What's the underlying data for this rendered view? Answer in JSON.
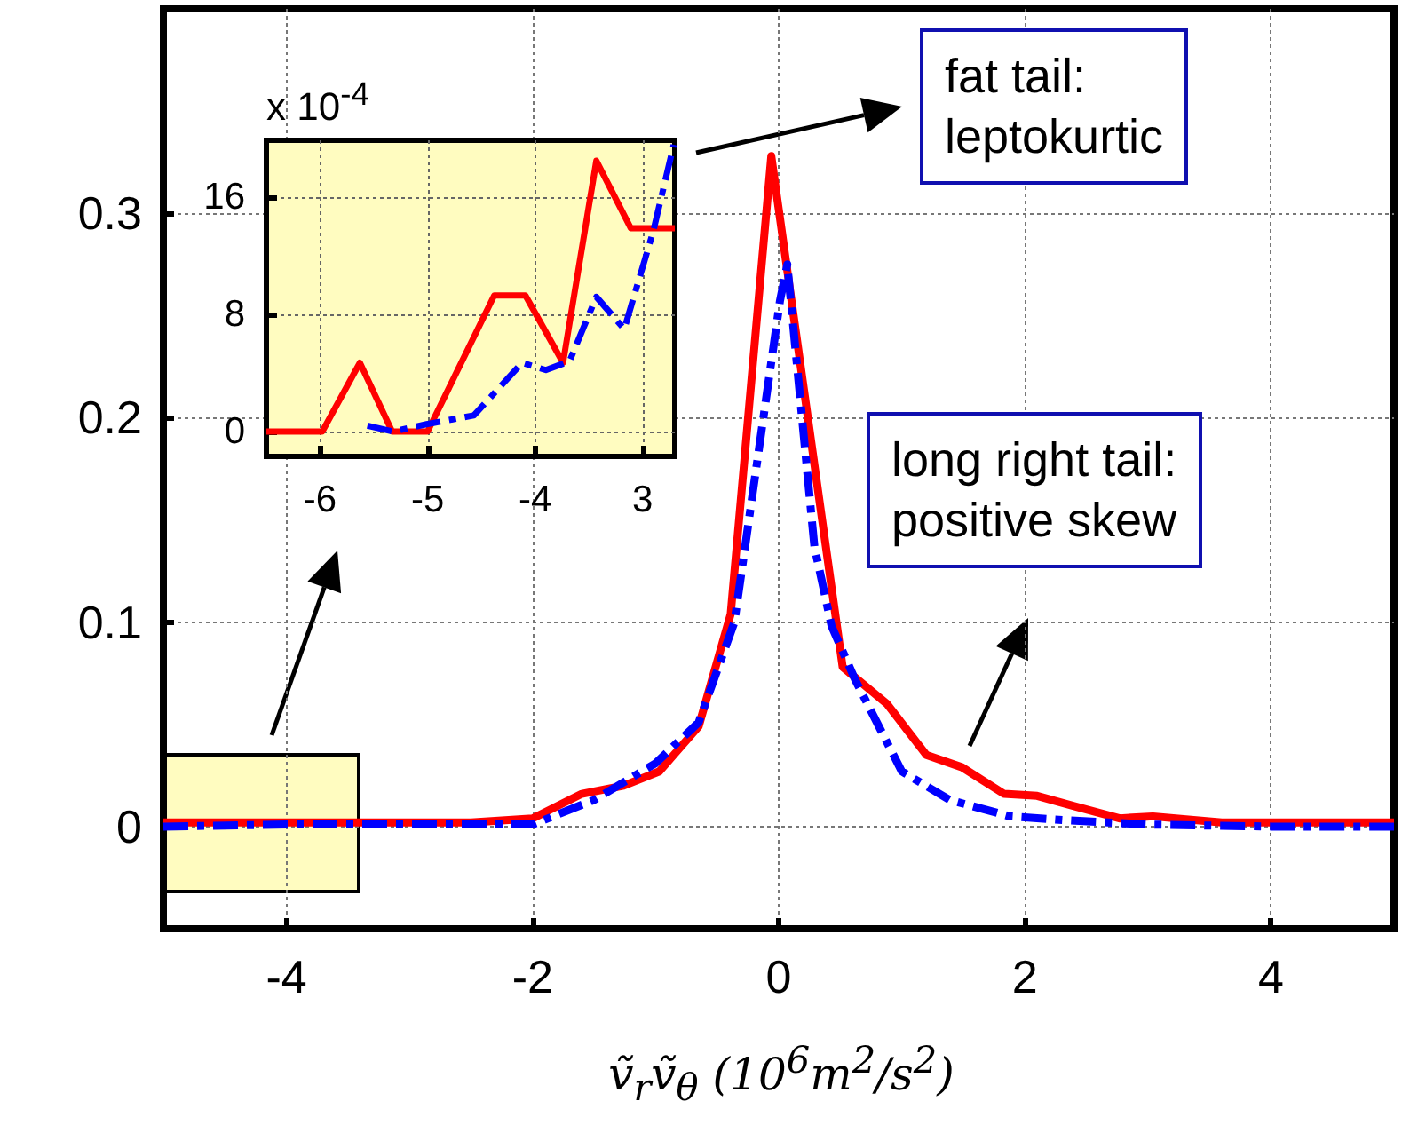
{
  "chart_data": [
    {
      "type": "line",
      "xlabel": "ṽ$_{r}$ṽ$_{θ}$ (10$^{6}$m$^{2}$/s$^{2}$)",
      "xlim": [
        -5,
        5
      ],
      "xticks": [
        -4,
        -2,
        0,
        2,
        4
      ],
      "ylim": [
        -0.05,
        0.4
      ],
      "yticks": [
        0,
        0.1,
        0.2,
        0.3
      ],
      "grid": true,
      "annotations": [
        "fat tail:\nleptokurtic",
        "long right tail:\npositive skew"
      ],
      "series": [
        {
          "color": "#ff0000",
          "line_style": "solid",
          "x": [
            -5,
            -4,
            -3,
            -2.5,
            -2,
            -1.6,
            -1.26,
            -0.97,
            -0.65,
            -0.39,
            -0.06,
            0.52,
            0.88,
            1.2,
            1.49,
            1.83,
            2.1,
            2.4,
            2.77,
            3.04,
            3.6,
            4,
            5
          ],
          "values": [
            0.002,
            0.002,
            0.002,
            0.002,
            0.004,
            0.016,
            0.02,
            0.027,
            0.049,
            0.104,
            0.328,
            0.078,
            0.06,
            0.035,
            0.029,
            0.016,
            0.015,
            0.01,
            0.004,
            0.005,
            0.002,
            0.002,
            0.002
          ]
        },
        {
          "color": "#0000ff",
          "line_style": "dashdot",
          "x": [
            -5,
            -4,
            -3,
            -2.5,
            -2,
            -1.5,
            -1,
            -0.65,
            -0.36,
            0.01,
            0.07,
            0.29,
            0.43,
            0.62,
            1,
            1.39,
            1.88,
            2.36,
            3,
            4,
            5
          ],
          "values": [
            0,
            0.001,
            0.001,
            0.001,
            0.001,
            0.013,
            0.031,
            0.051,
            0.1,
            0.257,
            0.275,
            0.137,
            0.098,
            0.072,
            0.027,
            0.013,
            0.005,
            0.003,
            0.001,
            0,
            0
          ]
        }
      ]
    },
    {
      "type": "line",
      "xlim": [
        -6.5,
        -2.7
      ],
      "xticks": [
        -6,
        -5,
        -4,
        {
          "value": -3,
          "label": "3"
        }
      ],
      "ylim": [
        -1.7,
        19.9
      ],
      "yticks": [
        0,
        8,
        16
      ],
      "grid": true,
      "annotations": [
        "x 10$^{-4}$"
      ],
      "series": [
        {
          "color": "#ff0000",
          "line_style": "solid",
          "x": [
            -6.5,
            -5.98,
            -5.63,
            -5.33,
            -5.0,
            -4.38,
            -4.09,
            -3.74,
            -3.43,
            -3.11,
            -2.7
          ],
          "values": [
            0,
            0,
            4.7,
            0,
            0,
            9.3,
            9.3,
            4.7,
            18.5,
            13.9,
            13.9
          ]
        },
        {
          "color": "#0000ff",
          "line_style": "dashdot",
          "x": [
            -5.56,
            -5.32,
            -5.01,
            -4.57,
            -4.12,
            -3.9,
            -3.68,
            -3.43,
            -3.17,
            -2.9,
            -2.71
          ],
          "values": [
            0.4,
            0,
            0.5,
            1.1,
            4.7,
            4.2,
            4.8,
            9.2,
            7.0,
            13.7,
            19.6
          ]
        }
      ]
    }
  ]
}
